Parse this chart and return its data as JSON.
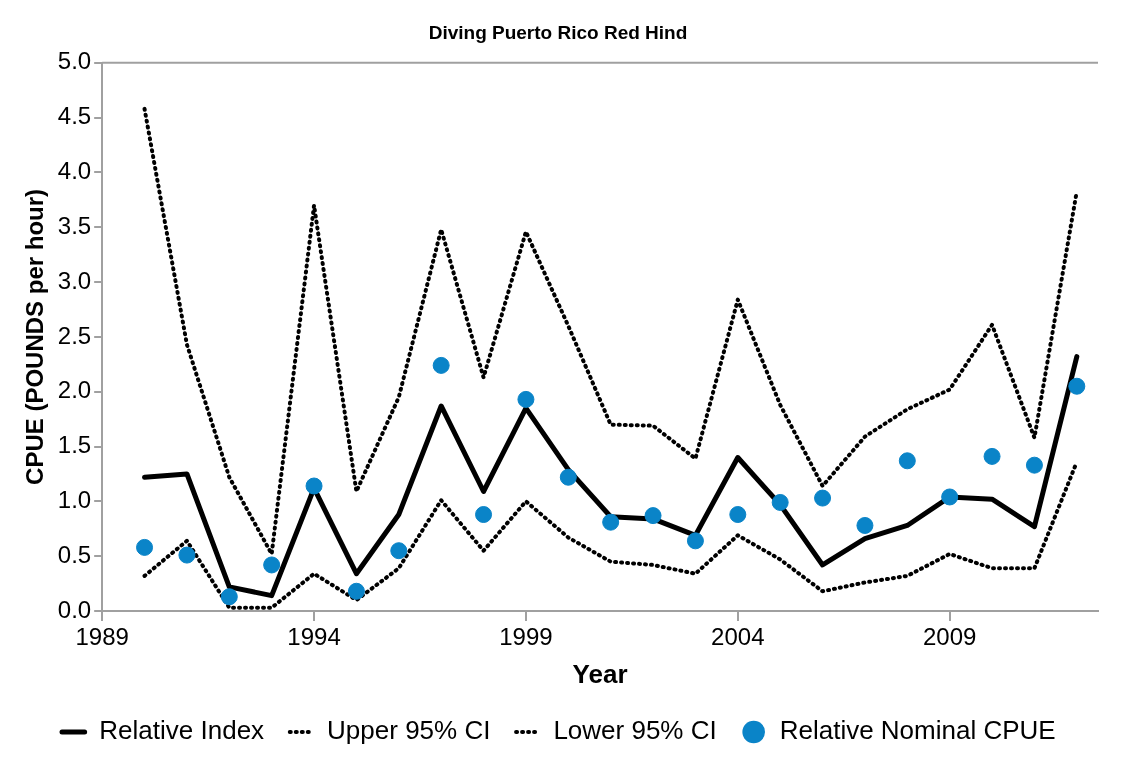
{
  "chart_data": {
    "type": "line",
    "title": "Diving Puerto Rico Red Hind",
    "xlabel": "Year",
    "ylabel": "CPUE (POUNDS per hour)",
    "x": [
      1990,
      1991,
      1992,
      1993,
      1994,
      1995,
      1996,
      1997,
      1998,
      1999,
      2000,
      2001,
      2002,
      2003,
      2004,
      2005,
      2006,
      2007,
      2008,
      2009,
      2010,
      2011,
      2012
    ],
    "series": [
      {
        "name": "Relative Index",
        "type": "line",
        "line_style": "solid",
        "marker": "none",
        "color": "#000000",
        "values": [
          1.22,
          1.25,
          0.22,
          0.14,
          1.12,
          0.34,
          0.88,
          1.87,
          1.09,
          1.85,
          1.29,
          0.86,
          0.84,
          0.69,
          1.4,
          0.97,
          0.42,
          0.66,
          0.78,
          1.04,
          1.02,
          0.77,
          2.32
        ]
      },
      {
        "name": "Upper 95% CI",
        "type": "line",
        "line_style": "dotted",
        "marker": "none",
        "color": "#000000",
        "values": [
          4.58,
          2.43,
          1.22,
          0.52,
          3.7,
          1.09,
          1.95,
          3.48,
          2.13,
          3.46,
          2.6,
          1.7,
          1.69,
          1.39,
          2.84,
          1.88,
          1.14,
          1.59,
          1.84,
          2.02,
          2.61,
          1.58,
          3.83
        ]
      },
      {
        "name": "Lower 95% CI",
        "type": "line",
        "line_style": "dotted",
        "marker": "none",
        "color": "#000000",
        "values": [
          0.32,
          0.64,
          0.03,
          0.03,
          0.34,
          0.1,
          0.39,
          1.01,
          0.55,
          1.0,
          0.67,
          0.45,
          0.42,
          0.34,
          0.69,
          0.47,
          0.18,
          0.26,
          0.32,
          0.52,
          0.39,
          0.39,
          1.36
        ]
      },
      {
        "name": "Relative Nominal CPUE",
        "type": "scatter",
        "marker": "circle",
        "color": "#0a84c8",
        "values": [
          0.58,
          0.51,
          0.13,
          0.42,
          1.14,
          0.18,
          0.55,
          2.24,
          0.88,
          1.93,
          1.22,
          0.81,
          0.87,
          0.64,
          0.88,
          0.99,
          1.03,
          0.78,
          1.37,
          1.04,
          1.41,
          1.33,
          2.05
        ]
      }
    ],
    "xlim": [
      1989,
      2012.5
    ],
    "xticks": [
      1989,
      1994,
      1999,
      2004,
      2009
    ],
    "ylim": [
      0,
      5
    ],
    "yticks": [
      {
        "value": 0,
        "label": "0.0"
      },
      {
        "value": 0.5,
        "label": "0.5"
      },
      {
        "value": 1,
        "label": "1.0"
      },
      {
        "value": 1.5,
        "label": "1.5"
      },
      {
        "value": 2,
        "label": "2.0"
      },
      {
        "value": 2.5,
        "label": "2.5"
      },
      {
        "value": 3,
        "label": "3.0"
      },
      {
        "value": 3.5,
        "label": "3.5"
      },
      {
        "value": 4,
        "label": "4.0"
      },
      {
        "value": 4.5,
        "label": "4.5"
      },
      {
        "value": 5,
        "label": "5.0"
      }
    ],
    "grid": false,
    "legend": "bottom"
  }
}
